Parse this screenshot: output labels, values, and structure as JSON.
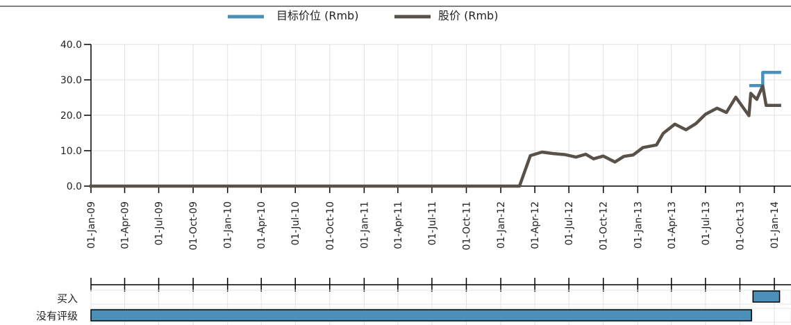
{
  "chart_data": {
    "type": "line",
    "title": "",
    "legend": {
      "placement": "top",
      "items": [
        {
          "label": "目标价位 (Rmb)",
          "color": "#4a90b8"
        },
        {
          "label": "股价 (Rmb)",
          "color": "#58514a"
        }
      ]
    },
    "y_axis": {
      "range": [
        0,
        40
      ],
      "ticks": [
        0,
        10,
        20,
        30,
        40
      ],
      "tick_labels": [
        "0.0",
        "10.0",
        "20.0",
        "30.0",
        "40.0"
      ],
      "grid": true
    },
    "x_axis": {
      "type": "date",
      "range_start": "2009-01-01",
      "tick_labels": [
        "01-Jan-09",
        "01-Apr-09",
        "01-Jul-09",
        "01-Oct-09",
        "01-Jan-10",
        "01-Apr-10",
        "01-Jul-10",
        "01-Oct-10",
        "01-Jan-11",
        "01-Apr-11",
        "01-Jul-11",
        "01-Oct-11",
        "01-Jan-12",
        "01-Apr-12",
        "01-Jul-12",
        "01-Oct-12",
        "01-Jan-13",
        "01-Apr-13",
        "01-Jul-13",
        "01-Oct-13",
        "01-Jan-14"
      ],
      "grid": true
    },
    "series": [
      {
        "name": "股价 (Rmb)",
        "color": "#58514a",
        "points": [
          [
            "2009-01-01",
            0
          ],
          [
            "2012-02-20",
            0
          ],
          [
            "2012-03-20",
            8.6
          ],
          [
            "2012-04-20",
            9.6
          ],
          [
            "2012-05-20",
            9.2
          ],
          [
            "2012-06-20",
            8.9
          ],
          [
            "2012-07-20",
            8.2
          ],
          [
            "2012-08-15",
            9.0
          ],
          [
            "2012-09-05",
            7.7
          ],
          [
            "2012-10-01",
            8.5
          ],
          [
            "2012-11-01",
            6.8
          ],
          [
            "2012-11-25",
            8.4
          ],
          [
            "2012-12-20",
            8.8
          ],
          [
            "2013-01-15",
            10.9
          ],
          [
            "2013-02-20",
            11.6
          ],
          [
            "2013-03-10",
            14.9
          ],
          [
            "2013-04-10",
            17.5
          ],
          [
            "2013-05-10",
            15.9
          ],
          [
            "2013-06-05",
            17.6
          ],
          [
            "2013-07-01",
            20.3
          ],
          [
            "2013-08-01",
            22.0
          ],
          [
            "2013-08-26",
            20.8
          ],
          [
            "2013-09-20",
            25.1
          ],
          [
            "2013-10-25",
            19.9
          ],
          [
            "2013-10-30",
            26.2
          ],
          [
            "2013-11-15",
            24.5
          ],
          [
            "2013-12-01",
            28.3
          ],
          [
            "2013-12-10",
            22.8
          ],
          [
            "2014-01-15",
            22.8
          ]
        ]
      },
      {
        "name": "目标价位 (Rmb)",
        "color": "#4a90b8",
        "points": [
          [
            "2013-10-30",
            28.4
          ],
          [
            "2013-12-01",
            28.4
          ],
          [
            "2013-12-01",
            32.1
          ],
          [
            "2014-01-15",
            32.1
          ]
        ]
      }
    ],
    "rating_bands": [
      {
        "label": "买入",
        "start": "2013-11-05",
        "end": "2014-01-15",
        "color": "#4a90b8"
      },
      {
        "label": "没有评级",
        "start": "2009-01-01",
        "end": "2013-11-01",
        "color": "#4a90b8"
      }
    ]
  }
}
